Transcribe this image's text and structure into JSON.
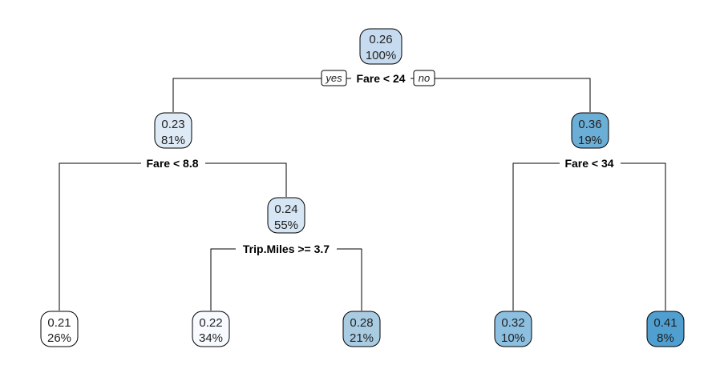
{
  "tree": {
    "nodes": [
      {
        "id": "root",
        "value": "0.26",
        "percent": "100%",
        "color": "#c6dbef"
      },
      {
        "id": "n2",
        "value": "0.23",
        "percent": "81%",
        "color": "#deebf7"
      },
      {
        "id": "n3",
        "value": "0.36",
        "percent": "19%",
        "color": "#6baed6"
      },
      {
        "id": "n5",
        "value": "0.24",
        "percent": "55%",
        "color": "#d6e6f4"
      },
      {
        "id": "l1",
        "value": "0.21",
        "percent": "26%",
        "color": "#ffffff"
      },
      {
        "id": "l2",
        "value": "0.22",
        "percent": "34%",
        "color": "#f7fbff"
      },
      {
        "id": "l3",
        "value": "0.28",
        "percent": "21%",
        "color": "#a9cce3"
      },
      {
        "id": "l4",
        "value": "0.32",
        "percent": "10%",
        "color": "#8dbfe0"
      },
      {
        "id": "l5",
        "value": "0.41",
        "percent": "8%",
        "color": "#4f9fd1"
      }
    ],
    "splits": {
      "root": "Fare < 24",
      "n2": "Fare < 8.8",
      "n3": "Fare < 34",
      "n5": "Trip.Miles >= 3.7"
    },
    "branch_labels": {
      "yes": "yes",
      "no": "no"
    }
  }
}
